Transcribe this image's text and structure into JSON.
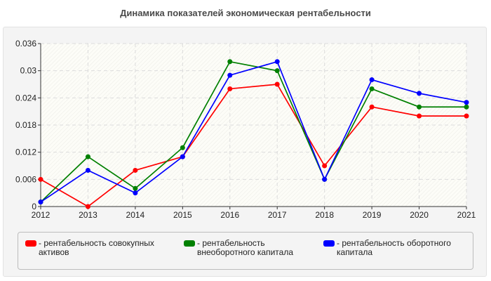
{
  "chart_data": {
    "type": "line",
    "title": "Динамика показателей экономическая рентабельности",
    "xlabel": "",
    "ylabel": "",
    "x": [
      2012,
      2013,
      2014,
      2015,
      2016,
      2017,
      2018,
      2019,
      2020,
      2021
    ],
    "ylim": [
      0,
      0.036
    ],
    "yticks": [
      "0",
      "0.006",
      "0.012",
      "0.018",
      "0.024",
      "0.03",
      "0.036"
    ],
    "grid": true,
    "legend_position": "bottom",
    "series": [
      {
        "name": "- рентабельность совокупных активов",
        "color": "#ff0000",
        "values": [
          0.006,
          0,
          0.008,
          0.011,
          0.026,
          0.027,
          0.009,
          0.022,
          0.02,
          0.02
        ]
      },
      {
        "name": "- рентабельность внеоборотного капитала",
        "color": "#008000",
        "values": [
          0.001,
          0.011,
          0.004,
          0.013,
          0.032,
          0.03,
          0.006,
          0.026,
          0.022,
          0.022
        ]
      },
      {
        "name": "- рентабельность оборотного капитала",
        "color": "#0000ff",
        "values": [
          0.001,
          0.008,
          0.003,
          0.011,
          0.029,
          0.032,
          0.006,
          0.028,
          0.025,
          0.023
        ]
      }
    ]
  }
}
